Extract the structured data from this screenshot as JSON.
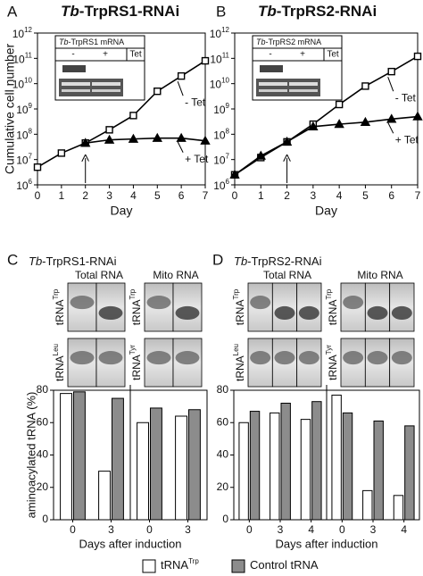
{
  "chart_data": [
    {
      "type": "line",
      "panel": "A",
      "title": {
        "italic": "Tb",
        "text": "-TrpRS1-RNAi"
      },
      "ylabel": "Cumulative cell number",
      "xlabel": "Day",
      "log_y": true,
      "x": [
        0,
        1,
        2,
        3,
        4,
        5,
        6,
        7
      ],
      "xlim": [
        0,
        7
      ],
      "xticks": [
        0,
        1,
        2,
        3,
        4,
        5,
        6,
        7
      ],
      "ylim": [
        1000000,
        1000000000000
      ],
      "yticks": [
        {
          "value": 1000000,
          "label": "10",
          "sup": "6"
        },
        {
          "value": 10000000,
          "label": "10",
          "sup": "7"
        },
        {
          "value": 100000000,
          "label": "10",
          "sup": "8"
        },
        {
          "value": 1000000000,
          "label": "10",
          "sup": "9"
        },
        {
          "value": 10000000000,
          "label": "10",
          "sup": "10"
        },
        {
          "value": 100000000000,
          "label": "10",
          "sup": "11"
        },
        {
          "value": 1000000000000,
          "label": "10",
          "sup": "12"
        }
      ],
      "series": [
        {
          "name": "- Tet",
          "marker": "square",
          "color": "#000000",
          "values": [
            5000000,
            18000000,
            45000000,
            150000000,
            550000000,
            5000000000,
            20000000000,
            80000000000
          ]
        },
        {
          "name": "+ Tet",
          "marker": "triangle",
          "color": "#000000",
          "values": [
            null,
            null,
            45000000,
            60000000,
            65000000,
            70000000,
            70000000,
            55000000
          ]
        }
      ],
      "arrow": 2,
      "inset": {
        "title": {
          "italic": "Tb",
          "text": "-TrpRS1 mRNA"
        },
        "lanes": [
          "-",
          "+"
        ],
        "label": "Tet"
      }
    },
    {
      "type": "line",
      "panel": "B",
      "title": {
        "italic": "Tb",
        "text": "-TrpRS2-RNAi"
      },
      "xlabel": "Day",
      "log_y": true,
      "x": [
        0,
        1,
        2,
        3,
        4,
        5,
        6,
        7
      ],
      "xlim": [
        0,
        7
      ],
      "xticks": [
        0,
        1,
        2,
        3,
        4,
        5,
        6,
        7
      ],
      "ylim": [
        1000000,
        1000000000000
      ],
      "yticks": [
        {
          "value": 1000000,
          "label": "10",
          "sup": "6"
        },
        {
          "value": 10000000,
          "label": "10",
          "sup": "7"
        },
        {
          "value": 100000000,
          "label": "10",
          "sup": "8"
        },
        {
          "value": 1000000000,
          "label": "10",
          "sup": "9"
        },
        {
          "value": 10000000000,
          "label": "10",
          "sup": "10"
        },
        {
          "value": 100000000000,
          "label": "10",
          "sup": "11"
        },
        {
          "value": 1000000000000,
          "label": "10",
          "sup": "12"
        }
      ],
      "series": [
        {
          "name": "- Tet",
          "marker": "square",
          "color": "#000000",
          "values": [
            2500000,
            12000000,
            50000000,
            250000000,
            1500000000,
            8000000000,
            30000000000,
            120000000000
          ]
        },
        {
          "name": "+ Tet",
          "marker": "triangle",
          "color": "#000000",
          "values": [
            2500000,
            14000000,
            50000000,
            200000000,
            250000000,
            300000000,
            400000000,
            500000000
          ]
        }
      ],
      "arrow": 2,
      "inset": {
        "title": {
          "italic": "Tb",
          "text": "-TrpRS2 mRNA"
        },
        "lanes": [
          "-",
          "+"
        ],
        "label": "Tet"
      }
    },
    {
      "type": "bar",
      "panel": "C",
      "title": {
        "italic": "Tb",
        "text": "-TrpRS1-RNAi"
      },
      "ylabel": "aminoacylated tRNA (%)",
      "xlabel": "Days after induction",
      "groups": [
        "Total RNA",
        "Mito RNA"
      ],
      "gel_rows": [
        [
          {
            "label": "tRNA",
            "sup": "Trp"
          },
          {
            "label": "tRNA",
            "sup": "Leu"
          }
        ],
        [
          {
            "label": "tRNA",
            "sup": "Trp"
          },
          {
            "label": "tRNA",
            "sup": "Tyr"
          }
        ]
      ],
      "categories": [
        "0",
        "3",
        "0",
        "3"
      ],
      "ylim": [
        0,
        80
      ],
      "yticks": [
        0,
        20,
        40,
        60,
        80
      ],
      "series": [
        {
          "name": "tRNA",
          "name_sup": "Trp",
          "color": "#ffffff",
          "values": [
            78,
            30,
            60,
            64
          ]
        },
        {
          "name": "Control tRNA",
          "color": "#8c8c8c",
          "values": [
            79,
            75,
            69,
            68
          ]
        }
      ]
    },
    {
      "type": "bar",
      "panel": "D",
      "title": {
        "italic": "Tb",
        "text": "-TrpRS2-RNAi"
      },
      "xlabel": "Days after induction",
      "groups": [
        "Total RNA",
        "Mito RNA"
      ],
      "gel_rows": [
        [
          {
            "label": "tRNA",
            "sup": "Trp"
          },
          {
            "label": "tRNA",
            "sup": "Leu"
          }
        ],
        [
          {
            "label": "tRNA",
            "sup": "Trp"
          },
          {
            "label": "tRNA",
            "sup": "Tyr"
          }
        ]
      ],
      "categories": [
        "0",
        "3",
        "4",
        "0",
        "3",
        "4"
      ],
      "ylim": [
        0,
        80
      ],
      "yticks": [
        0,
        20,
        40,
        60,
        80
      ],
      "series": [
        {
          "color": "#ffffff",
          "values": [
            60,
            66,
            62,
            77,
            18,
            15
          ]
        },
        {
          "color": "#8c8c8c",
          "values": [
            67,
            72,
            73,
            66,
            61,
            58
          ]
        }
      ]
    }
  ]
}
